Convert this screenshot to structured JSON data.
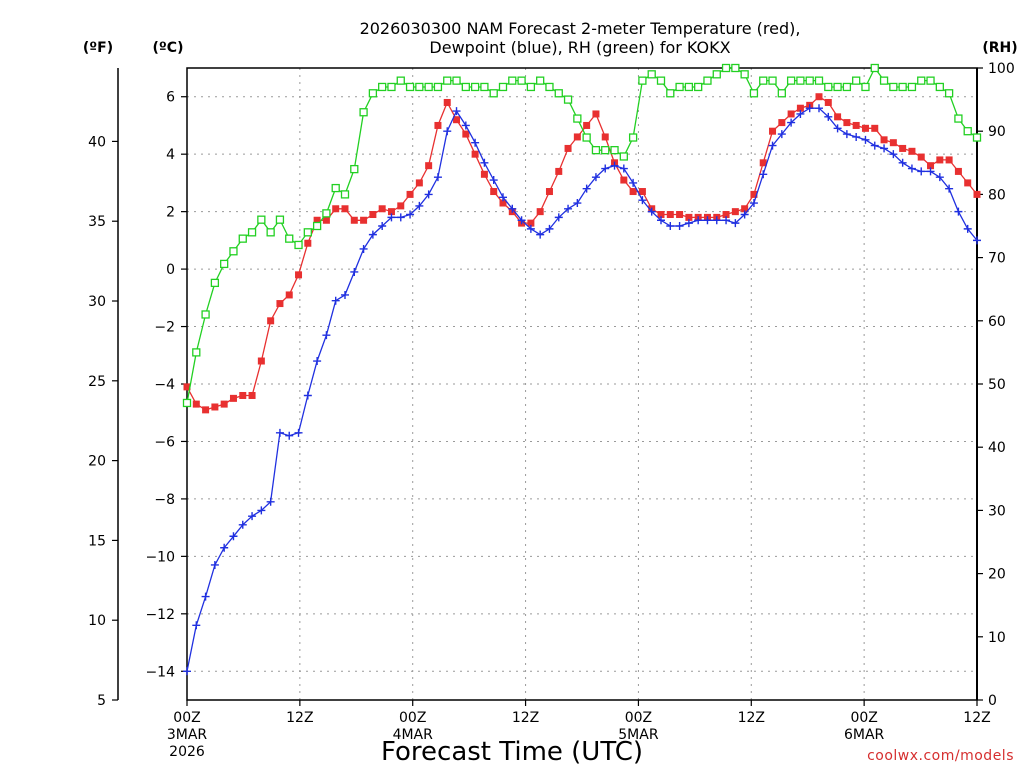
{
  "chart_data": {
    "type": "line",
    "title_lines": [
      "2026030300 NAM Forecast 2-meter Temperature (red),",
      "Dewpoint (blue), RH (green) for KOKX"
    ],
    "xlabel": "Forecast Time (UTC)",
    "credit": "coolwx.com/models",
    "units": {
      "fahrenheit": "(ºF)",
      "celsius": "(ºC)",
      "rh": "(RH)"
    },
    "x_range_hours": [
      0,
      84
    ],
    "x_ticks": [
      {
        "hour": 0,
        "lines": [
          "00Z",
          "3MAR",
          "2026"
        ]
      },
      {
        "hour": 12,
        "lines": [
          "12Z"
        ]
      },
      {
        "hour": 24,
        "lines": [
          "00Z",
          "4MAR"
        ]
      },
      {
        "hour": 36,
        "lines": [
          "12Z"
        ]
      },
      {
        "hour": 48,
        "lines": [
          "00Z",
          "5MAR"
        ]
      },
      {
        "hour": 60,
        "lines": [
          "12Z"
        ]
      },
      {
        "hour": 72,
        "lines": [
          "00Z",
          "6MAR"
        ]
      },
      {
        "hour": 84,
        "lines": [
          "12Z"
        ]
      }
    ],
    "celsius_axis": {
      "range": [
        -15,
        7
      ],
      "ticks": [
        -14,
        -12,
        -10,
        -8,
        -6,
        -4,
        -2,
        0,
        2,
        4,
        6
      ]
    },
    "fahrenheit_axis": {
      "range": [
        5,
        44.6
      ],
      "ticks": [
        5,
        10,
        15,
        20,
        25,
        30,
        35,
        40
      ]
    },
    "rh_axis": {
      "range": [
        0,
        100
      ],
      "ticks": [
        0,
        10,
        20,
        30,
        40,
        50,
        60,
        70,
        80,
        90,
        100
      ]
    },
    "grid": true,
    "series": [
      {
        "name": "Temperature",
        "color": "#e83030",
        "marker": "filled-square",
        "axis": "celsius",
        "values": [
          -4.1,
          -4.7,
          -4.9,
          -4.8,
          -4.7,
          -4.5,
          -4.4,
          -4.4,
          -3.2,
          -1.8,
          -1.2,
          -0.9,
          -0.2,
          0.9,
          1.7,
          1.7,
          2.1,
          2.1,
          1.7,
          1.7,
          1.9,
          2.1,
          2.0,
          2.2,
          2.6,
          3.0,
          3.6,
          5.0,
          5.8,
          5.2,
          4.7,
          4.0,
          3.3,
          2.7,
          2.3,
          2.0,
          1.6,
          1.6,
          2.0,
          2.7,
          3.4,
          4.2,
          4.6,
          5.0,
          5.4,
          4.6,
          3.7,
          3.1,
          2.7,
          2.7,
          2.1,
          1.9,
          1.9,
          1.9,
          1.8,
          1.8,
          1.8,
          1.8,
          1.9,
          2.0,
          2.1,
          2.6,
          3.7,
          4.8,
          5.1,
          5.4,
          5.6,
          5.7,
          6.0,
          5.8,
          5.3,
          5.1,
          5.0,
          4.9,
          4.9,
          4.5,
          4.4,
          4.2,
          4.1,
          3.9,
          3.6,
          3.8,
          3.8,
          3.4,
          3.0,
          2.6
        ]
      },
      {
        "name": "Dewpoint",
        "color": "#2030e0",
        "marker": "plus",
        "axis": "celsius",
        "values": [
          -14.0,
          -12.4,
          -11.4,
          -10.3,
          -9.7,
          -9.3,
          -8.9,
          -8.6,
          -8.4,
          -8.1,
          -5.7,
          -5.8,
          -5.7,
          -4.4,
          -3.2,
          -2.3,
          -1.1,
          -0.9,
          -0.1,
          0.7,
          1.2,
          1.5,
          1.8,
          1.8,
          1.9,
          2.2,
          2.6,
          3.2,
          4.8,
          5.5,
          5.0,
          4.4,
          3.7,
          3.1,
          2.5,
          2.1,
          1.7,
          1.4,
          1.2,
          1.4,
          1.8,
          2.1,
          2.3,
          2.8,
          3.2,
          3.5,
          3.6,
          3.5,
          3.0,
          2.4,
          2.0,
          1.7,
          1.5,
          1.5,
          1.6,
          1.7,
          1.7,
          1.7,
          1.7,
          1.6,
          1.9,
          2.3,
          3.3,
          4.3,
          4.7,
          5.1,
          5.4,
          5.6,
          5.6,
          5.3,
          4.9,
          4.7,
          4.6,
          4.5,
          4.3,
          4.2,
          4.0,
          3.7,
          3.5,
          3.4,
          3.4,
          3.2,
          2.8,
          2.0,
          1.4,
          1.0
        ]
      },
      {
        "name": "RH",
        "color": "#22d022",
        "marker": "open-square",
        "axis": "rh",
        "values": [
          47,
          55,
          61,
          66,
          69,
          71,
          73,
          74,
          76,
          74,
          76,
          73,
          72,
          74,
          75,
          77,
          81,
          80,
          84,
          93,
          96,
          97,
          97,
          98,
          97,
          97,
          97,
          97,
          98,
          98,
          97,
          97,
          97,
          96,
          97,
          98,
          98,
          97,
          98,
          97,
          96,
          95,
          92,
          89,
          87,
          87,
          87,
          86,
          89,
          98,
          99,
          98,
          96,
          97,
          97,
          97,
          98,
          99,
          100,
          100,
          99,
          96,
          98,
          98,
          96,
          98,
          98,
          98,
          98,
          97,
          97,
          97,
          98,
          97,
          100,
          98,
          97,
          97,
          97,
          98,
          98,
          97,
          96,
          92,
          90,
          89
        ]
      }
    ]
  }
}
